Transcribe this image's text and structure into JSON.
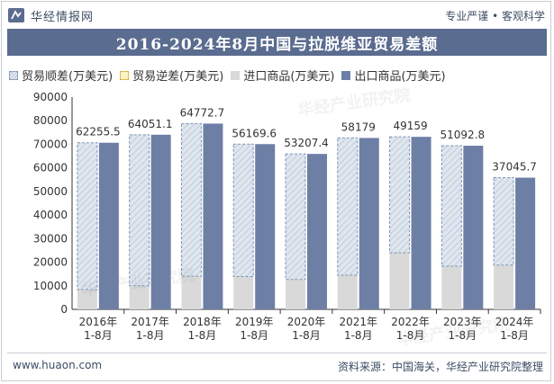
{
  "header": {
    "brand": "华经情报网",
    "tags": "专业严谨 • 客观科学"
  },
  "title": "2016-2024年8月中国与拉脱维亚贸易差额",
  "watermark": "华经产业研究院",
  "colors": {
    "surplus": "#dfe6ee",
    "surplus_hatch": "#b9c7d8",
    "deficit": "#f2d36a",
    "import": "#d9d9d9",
    "export": "#6e7fa6",
    "title_bar": "#5a6c8f"
  },
  "chart_data": {
    "type": "bar",
    "categories": [
      "2016年\n1-8月",
      "2017年\n1-8月",
      "2018年\n1-8月",
      "2019年\n1-8月",
      "2020年\n1-8月",
      "2021年\n1-8月",
      "2022年\n1-8月",
      "2023年\n1-8月",
      "2024年\n1-8月"
    ],
    "series": [
      {
        "name": "贸易顺差(万美元)",
        "values": [
          62255.5,
          64051.1,
          64772.7,
          56169.6,
          53207.4,
          58179,
          49159,
          51092.8,
          37045.7
        ]
      },
      {
        "name": "贸易逆差(万美元)",
        "values": [
          0,
          0,
          0,
          0,
          0,
          0,
          0,
          0,
          0
        ]
      },
      {
        "name": "进口商品(万美元)",
        "values": [
          8400,
          10000,
          14000,
          13900,
          12700,
          14500,
          24000,
          18300,
          18800
        ]
      },
      {
        "name": "出口商品(万美元)",
        "values": [
          70655.5,
          74051.1,
          78772.7,
          70069.6,
          65907.4,
          72679,
          73159,
          69392.8,
          55845.7
        ]
      }
    ],
    "labels": [
      "62255.5",
      "64051.1",
      "64772.7",
      "56169.6",
      "53207.4",
      "58179",
      "49159",
      "51092.8",
      "37045.7"
    ],
    "yticks": [
      "0",
      "10000",
      "20000",
      "30000",
      "40000",
      "50000",
      "60000",
      "70000",
      "80000",
      "90000"
    ],
    "ylim": [
      0,
      90000
    ],
    "grid": false,
    "legend": "top-left"
  },
  "footer": {
    "website": "www.huaon.com",
    "source": "资料来源：中国海关，华经产业研究院整理"
  }
}
